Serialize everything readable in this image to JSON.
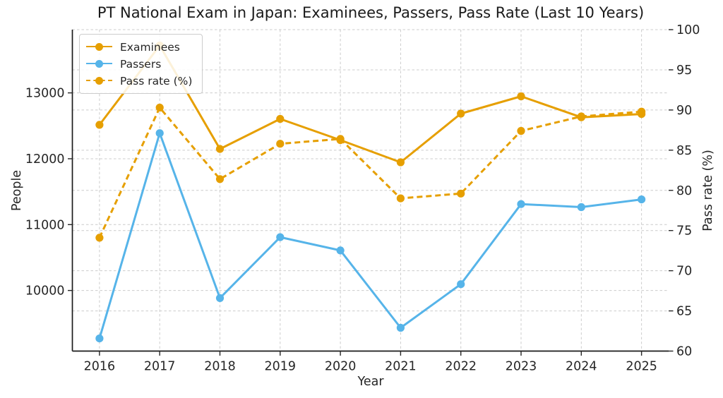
{
  "chart_data": {
    "type": "line",
    "title": "PT National Exam in Japan: Examinees, Passers, Pass Rate (Last 10 Years)",
    "xlabel": "Year",
    "ylabel_left": "People",
    "ylabel_right": "Pass rate (%)",
    "x": [
      2016,
      2017,
      2018,
      2019,
      2020,
      2021,
      2022,
      2023,
      2024,
      2025
    ],
    "x_tick_labels": [
      "2016",
      "2017",
      "2018",
      "2019",
      "2020",
      "2021",
      "2022",
      "2023",
      "2024",
      "2025"
    ],
    "series": [
      {
        "name": "Examinees",
        "axis": "left",
        "line_style": "solid",
        "marker": "circle",
        "color": "#E69F00",
        "values": [
          12515,
          13719,
          12148,
          12605,
          12283,
          11946,
          12685,
          12948,
          12629,
          12679
        ]
      },
      {
        "name": "Passers",
        "axis": "left",
        "line_style": "solid",
        "marker": "circle",
        "color": "#56B4E9",
        "values": [
          9272,
          12388,
          9885,
          10809,
          10608,
          9434,
          10096,
          11312,
          11266,
          11382
        ]
      },
      {
        "name": "Pass rate (%)",
        "axis": "right",
        "line_style": "dashed",
        "marker": "circle",
        "color": "#E69F00",
        "values": [
          74.1,
          90.3,
          81.4,
          85.8,
          86.4,
          79.0,
          79.6,
          87.4,
          89.2,
          89.8
        ]
      }
    ],
    "left_axis": {
      "ticks": [
        10000,
        11000,
        12000,
        13000
      ],
      "range": [
        9080,
        13960
      ]
    },
    "right_axis": {
      "ticks": [
        60,
        65,
        70,
        75,
        80,
        85,
        90,
        95,
        100
      ],
      "range": [
        60,
        100
      ]
    },
    "grid": true,
    "legend_position": "upper left",
    "colors": {
      "grid": "#cccccc",
      "spine": "#1a1a1a",
      "tick": "#262626",
      "text": "#262626",
      "background": "#ffffff"
    }
  }
}
